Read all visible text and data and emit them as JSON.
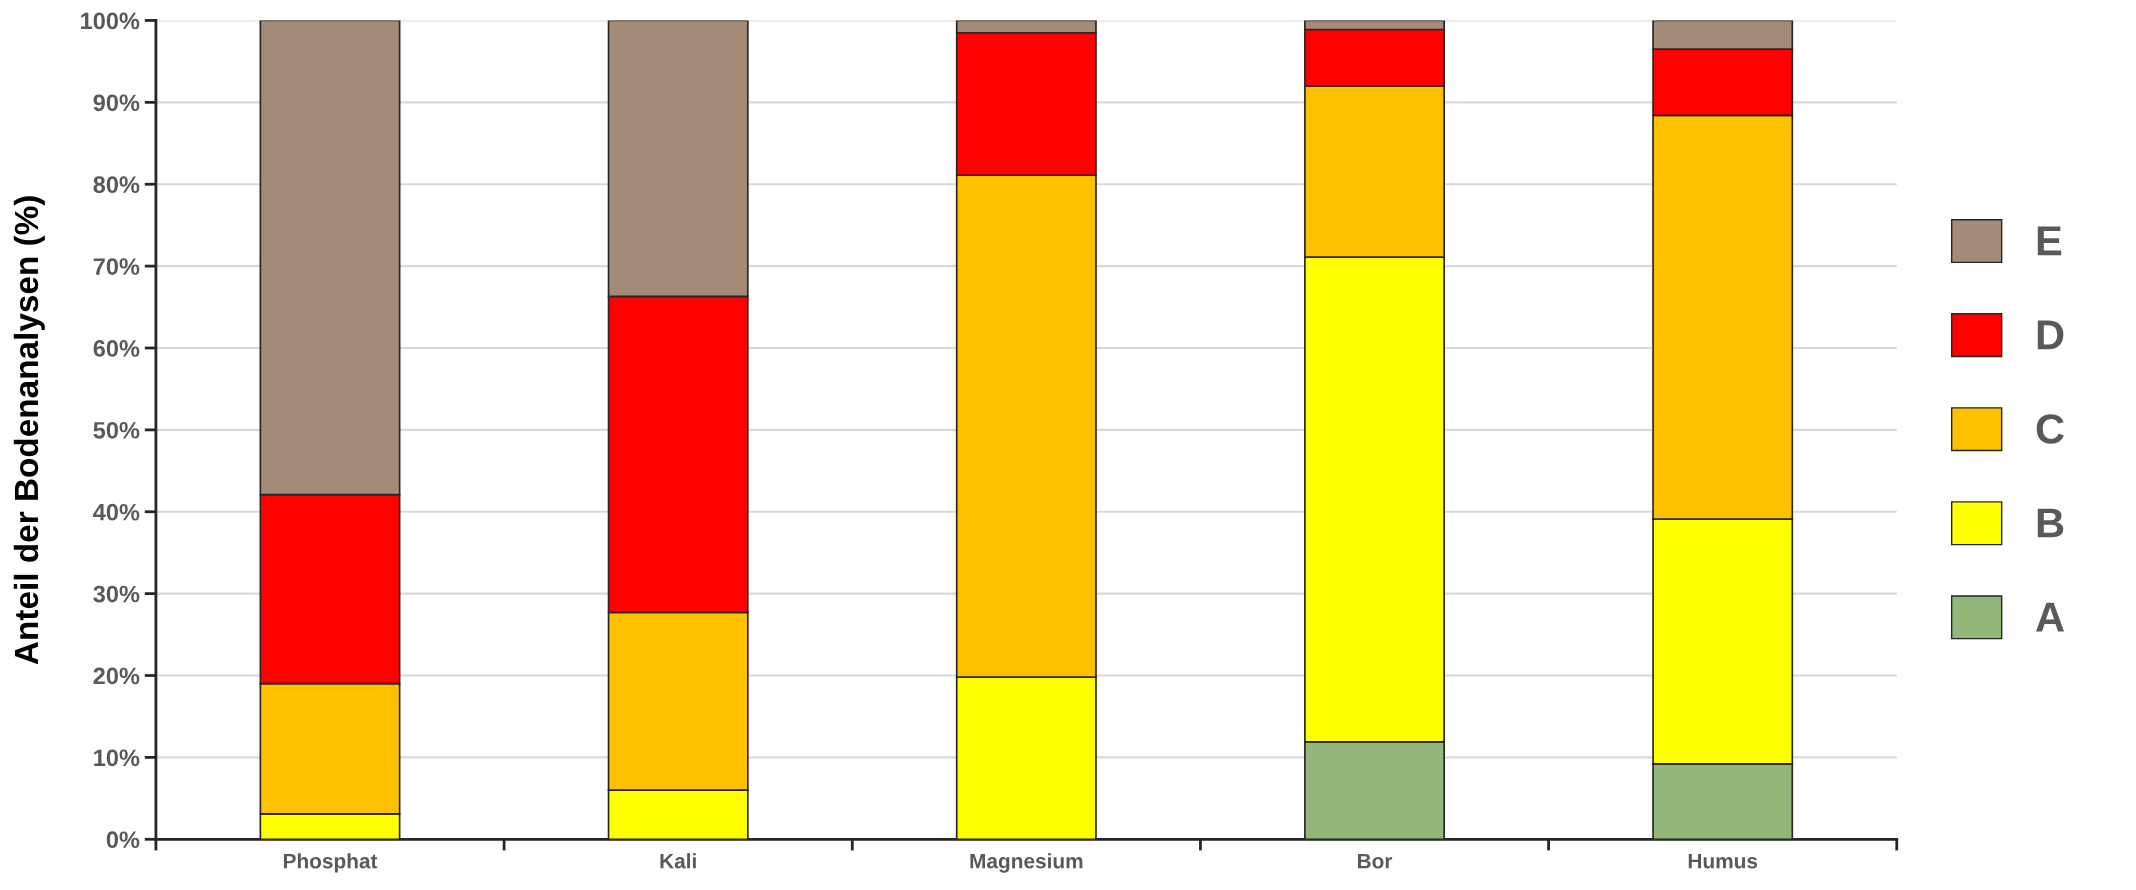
{
  "chart_data": {
    "type": "bar",
    "stacked": true,
    "ylabel": "Anteil der Bodenanalysen (%)",
    "categories": [
      "Phosphat",
      "Kali",
      "Magnesium",
      "Bor",
      "Humus"
    ],
    "series": [
      {
        "name": "A",
        "color": "#93b778",
        "values": [
          0,
          0,
          0,
          11.9,
          9.2
        ]
      },
      {
        "name": "B",
        "color": "#ffff00",
        "values": [
          3.1,
          6.0,
          19.8,
          59.2,
          29.9
        ]
      },
      {
        "name": "C",
        "color": "#ffc000",
        "values": [
          15.9,
          21.7,
          61.3,
          20.9,
          49.3
        ]
      },
      {
        "name": "D",
        "color": "#ff0000",
        "values": [
          23.1,
          38.6,
          17.4,
          6.9,
          8.1
        ]
      },
      {
        "name": "E",
        "color": "#a48b78",
        "values": [
          57.9,
          33.7,
          1.5,
          1.1,
          3.5
        ]
      }
    ],
    "ylim": [
      0,
      100
    ],
    "yticks": [
      {
        "value": 0,
        "label": "0%"
      },
      {
        "value": 10,
        "label": "10%"
      },
      {
        "value": 20,
        "label": "20%"
      },
      {
        "value": 30,
        "label": "30%"
      },
      {
        "value": 40,
        "label": "40%"
      },
      {
        "value": 50,
        "label": "50%"
      },
      {
        "value": 60,
        "label": "60%"
      },
      {
        "value": 70,
        "label": "70%"
      },
      {
        "value": 80,
        "label": "80%"
      },
      {
        "value": 90,
        "label": "90%"
      },
      {
        "value": 100,
        "label": "100%"
      }
    ],
    "grid": "y",
    "legend": "right"
  }
}
